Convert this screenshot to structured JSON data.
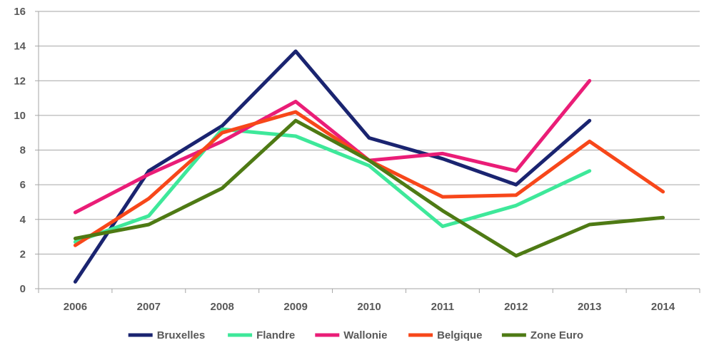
{
  "chart_data": {
    "type": "line",
    "title": "",
    "xlabel": "",
    "ylabel": "",
    "categories": [
      "2006",
      "2007",
      "2008",
      "2009",
      "2010",
      "2011",
      "2012",
      "2013",
      "2014"
    ],
    "ylim": [
      0,
      16
    ],
    "yticks": [
      0,
      2,
      4,
      6,
      8,
      10,
      12,
      14,
      16
    ],
    "grid": true,
    "legend_position": "bottom",
    "series": [
      {
        "name": "Bruxelles",
        "color": "#1a2470",
        "values": [
          0.4,
          6.8,
          9.4,
          13.7,
          8.7,
          7.5,
          6.0,
          9.7,
          null
        ]
      },
      {
        "name": "Flandre",
        "color": "#3ee89a",
        "values": [
          2.7,
          4.2,
          9.2,
          8.8,
          7.1,
          3.6,
          4.8,
          6.8,
          null
        ]
      },
      {
        "name": "Wallonie",
        "color": "#ea1d77",
        "values": [
          4.4,
          6.6,
          8.5,
          10.8,
          7.4,
          7.8,
          6.8,
          12.0,
          null
        ]
      },
      {
        "name": "Belgique",
        "color": "#f7471a",
        "values": [
          2.5,
          5.2,
          9.0,
          10.2,
          7.4,
          5.3,
          5.4,
          8.5,
          5.6
        ]
      },
      {
        "name": "Zone Euro",
        "color": "#4e7a14",
        "values": [
          2.9,
          3.7,
          5.8,
          9.7,
          7.4,
          4.5,
          1.9,
          3.7,
          4.1
        ]
      }
    ]
  }
}
